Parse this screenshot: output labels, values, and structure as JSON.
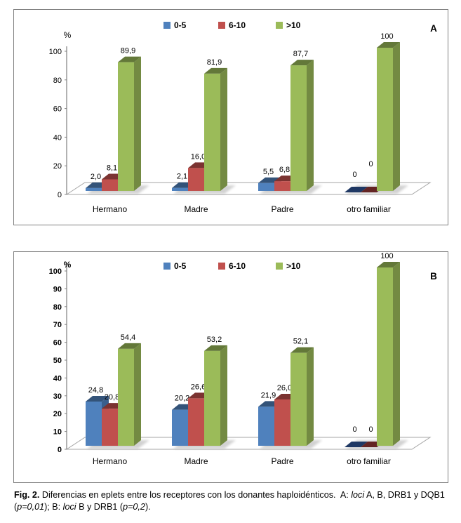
{
  "figure": {
    "caption": {
      "fig_label": "Fig. 2.",
      "seg1": " Diferencias en eplets entre los receptores con los donantes haploidénticos.  A: ",
      "loci1": "loci",
      "seg2": " A, B, DRB1 y DQB1 (",
      "p1": "p=0,01",
      "seg3": "); B: ",
      "loci2": "loci",
      "seg4": " B y DRB1 (",
      "p2": "p=0,2",
      "seg5": ")."
    }
  },
  "colors": {
    "series": [
      "#4F81BD",
      "#C0504D",
      "#9BBB59"
    ],
    "zero_series": [
      "#1F3864",
      "#632423"
    ],
    "axis": "#808080",
    "floor_stroke": "#A6A6A6",
    "panel_border": "#7F7F7F",
    "shadow": "#7F7F7F"
  },
  "chart_data": [
    {
      "type": "bar",
      "panel_label": "A",
      "ylabel": "%",
      "categories": [
        "Hermano",
        "Madre",
        "Padre",
        "otro familiar"
      ],
      "series": [
        {
          "name": "0-5",
          "values": [
            2.0,
            2.1,
            5.5,
            0
          ],
          "labels": [
            "2,0",
            "2,1",
            "5,5",
            "0"
          ]
        },
        {
          "name": "6-10",
          "values": [
            8.1,
            16.0,
            6.8,
            0
          ],
          "labels": [
            "8,1",
            "16,0",
            "6,8",
            "0"
          ]
        },
        {
          "name": ">10",
          "values": [
            89.9,
            81.9,
            87.7,
            100
          ],
          "labels": [
            "89,9",
            "81,9",
            "87,7",
            "100"
          ]
        }
      ],
      "ylim": [
        0,
        100
      ],
      "ytick_step": 20,
      "grid": false,
      "legend_position": "top"
    },
    {
      "type": "bar",
      "panel_label": "B",
      "ylabel": "%",
      "categories": [
        "Hermano",
        "Madre",
        "Padre",
        "otro familiar"
      ],
      "series": [
        {
          "name": "0-5",
          "values": [
            24.8,
            20.2,
            21.9,
            0
          ],
          "labels": [
            "24,8",
            "20,2",
            "21,9",
            "0"
          ]
        },
        {
          "name": "6-10",
          "values": [
            20.8,
            26.6,
            26.0,
            0
          ],
          "labels": [
            "20,8",
            "26,6",
            "26,0",
            "0"
          ]
        },
        {
          "name": ">10",
          "values": [
            54.4,
            53.2,
            52.1,
            100
          ],
          "labels": [
            "54,4",
            "53,2",
            "52,1",
            "100"
          ]
        }
      ],
      "ylim": [
        0,
        100
      ],
      "ytick_step": 10,
      "grid": false,
      "legend_position": "top"
    }
  ]
}
